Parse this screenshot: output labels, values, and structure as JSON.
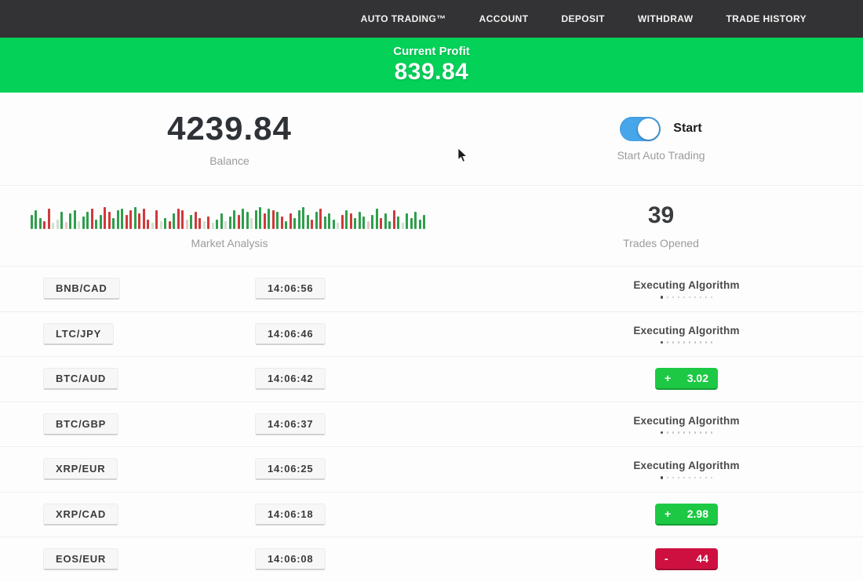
{
  "nav": {
    "items": [
      "AUTO TRADING™",
      "ACCOUNT",
      "DEPOSIT",
      "WITHDRAW",
      "TRADE HISTORY"
    ]
  },
  "profit_banner": {
    "label": "Current Profit",
    "value": "839.84"
  },
  "account": {
    "balance_value": "4239.84",
    "balance_label": "Balance",
    "toggle_label": "Start",
    "toggle_sublabel": "Start Auto Trading",
    "toggle_on": true
  },
  "market": {
    "label": "Market Analysis",
    "trades_opened_value": "39",
    "trades_opened_label": "Trades Opened",
    "bar_colors": {
      "g": "#2f9e4c",
      "r": "#cf3a3a",
      "p": "#cfe0cf",
      "q": "#e8c6c6"
    },
    "bars": [
      [
        18,
        "g"
      ],
      [
        24,
        "g"
      ],
      [
        14,
        "g"
      ],
      [
        10,
        "r"
      ],
      [
        26,
        "r"
      ],
      [
        8,
        "p"
      ],
      [
        12,
        "p"
      ],
      [
        22,
        "g"
      ],
      [
        9,
        "q"
      ],
      [
        20,
        "g"
      ],
      [
        24,
        "g"
      ],
      [
        10,
        "p"
      ],
      [
        16,
        "g"
      ],
      [
        22,
        "g"
      ],
      [
        26,
        "r"
      ],
      [
        12,
        "g"
      ],
      [
        18,
        "g"
      ],
      [
        28,
        "r"
      ],
      [
        22,
        "r"
      ],
      [
        14,
        "g"
      ],
      [
        24,
        "g"
      ],
      [
        26,
        "g"
      ],
      [
        18,
        "r"
      ],
      [
        24,
        "r"
      ],
      [
        28,
        "g"
      ],
      [
        20,
        "r"
      ],
      [
        26,
        "r"
      ],
      [
        12,
        "r"
      ],
      [
        8,
        "p"
      ],
      [
        24,
        "r"
      ],
      [
        10,
        "p"
      ],
      [
        14,
        "g"
      ],
      [
        10,
        "r"
      ],
      [
        20,
        "g"
      ],
      [
        26,
        "r"
      ],
      [
        24,
        "r"
      ],
      [
        12,
        "q"
      ],
      [
        18,
        "g"
      ],
      [
        22,
        "r"
      ],
      [
        14,
        "r"
      ],
      [
        10,
        "p"
      ],
      [
        16,
        "r"
      ],
      [
        8,
        "p"
      ],
      [
        12,
        "g"
      ],
      [
        20,
        "g"
      ],
      [
        10,
        "p"
      ],
      [
        16,
        "g"
      ],
      [
        24,
        "g"
      ],
      [
        18,
        "r"
      ],
      [
        26,
        "g"
      ],
      [
        22,
        "g"
      ],
      [
        14,
        "p"
      ],
      [
        24,
        "g"
      ],
      [
        28,
        "g"
      ],
      [
        20,
        "r"
      ],
      [
        26,
        "g"
      ],
      [
        24,
        "r"
      ],
      [
        22,
        "g"
      ],
      [
        16,
        "r"
      ],
      [
        10,
        "g"
      ],
      [
        20,
        "r"
      ],
      [
        14,
        "g"
      ],
      [
        24,
        "g"
      ],
      [
        28,
        "g"
      ],
      [
        18,
        "g"
      ],
      [
        12,
        "r"
      ],
      [
        22,
        "g"
      ],
      [
        26,
        "r"
      ],
      [
        16,
        "g"
      ],
      [
        20,
        "g"
      ],
      [
        12,
        "g"
      ],
      [
        8,
        "p"
      ],
      [
        18,
        "r"
      ],
      [
        24,
        "g"
      ],
      [
        20,
        "r"
      ],
      [
        14,
        "g"
      ],
      [
        22,
        "g"
      ],
      [
        16,
        "g"
      ],
      [
        10,
        "q"
      ],
      [
        18,
        "g"
      ],
      [
        26,
        "g"
      ],
      [
        14,
        "r"
      ],
      [
        20,
        "g"
      ],
      [
        10,
        "g"
      ],
      [
        24,
        "r"
      ],
      [
        16,
        "g"
      ],
      [
        8,
        "p"
      ],
      [
        20,
        "g"
      ],
      [
        14,
        "g"
      ],
      [
        22,
        "g"
      ],
      [
        12,
        "g"
      ],
      [
        18,
        "g"
      ]
    ]
  },
  "rows": [
    {
      "pair": "BNB/CAD",
      "time": "14:06:56",
      "status": "executing",
      "executing_label": "Executing Algorithm"
    },
    {
      "pair": "LTC/JPY",
      "time": "14:06:46",
      "status": "executing",
      "executing_label": "Executing Algorithm"
    },
    {
      "pair": "BTC/AUD",
      "time": "14:06:42",
      "status": "profit",
      "sign": "+",
      "value": "3.02"
    },
    {
      "pair": "BTC/GBP",
      "time": "14:06:37",
      "status": "executing",
      "executing_label": "Executing Algorithm"
    },
    {
      "pair": "XRP/EUR",
      "time": "14:06:25",
      "status": "executing",
      "executing_label": "Executing Algorithm"
    },
    {
      "pair": "XRP/CAD",
      "time": "14:06:18",
      "status": "profit",
      "sign": "+",
      "value": "2.98"
    },
    {
      "pair": "EOS/EUR",
      "time": "14:06:08",
      "status": "loss",
      "sign": "-",
      "value": "44"
    }
  ],
  "colors": {
    "nav_bg": "#333335",
    "banner_green": "#03d158",
    "badge_green": "#1dc944",
    "badge_red": "#ce1040",
    "toggle_blue": "#47a5e9"
  }
}
